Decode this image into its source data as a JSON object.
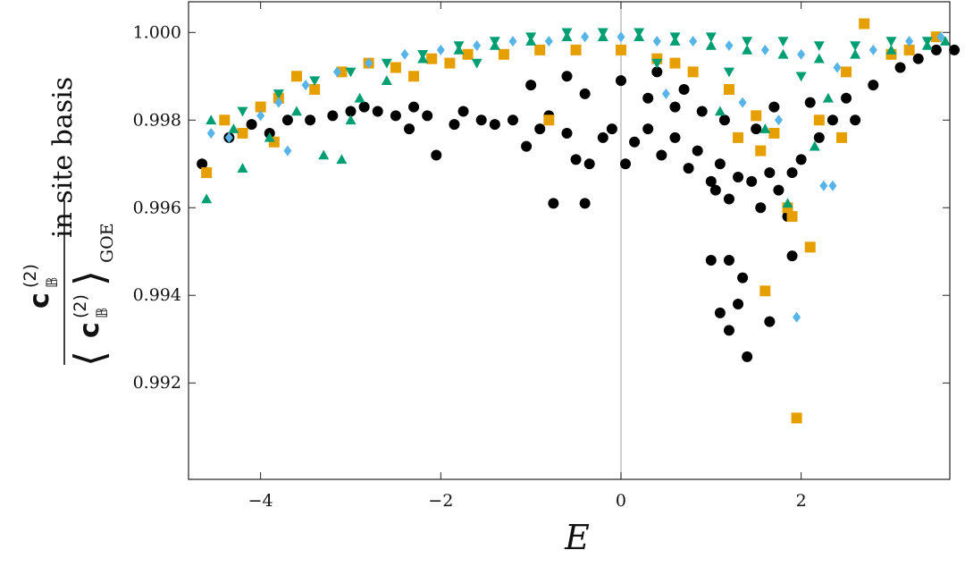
{
  "chart_data": {
    "type": "scatter",
    "title": "",
    "xlabel": "E",
    "ylabel_fraction": {
      "numerator": "c",
      "numerator_super": "(2)",
      "numerator_sub": "𝔹",
      "denominator": "c",
      "denominator_super": "(2)",
      "denominator_sub": "𝔹",
      "denominator_bracket_sub": "GOE"
    },
    "ylabel_suffix": "in site basis",
    "xlim": [
      -4.8,
      3.65
    ],
    "ylim": [
      0.9898,
      1.0007
    ],
    "x_ticks": [
      -4,
      -2,
      0,
      2
    ],
    "x_tick_labels": [
      "−4",
      "−2",
      "0",
      "2"
    ],
    "y_ticks": [
      0.992,
      0.994,
      0.996,
      0.998,
      1.0
    ],
    "y_tick_labels": [
      "0.992",
      "0.994",
      "0.996",
      "0.998",
      "1.000"
    ],
    "zero_line_x": 0,
    "grid": false,
    "legend": "none",
    "series": [
      {
        "marker": "circle",
        "color": "#000000",
        "points": [
          [
            -4.65,
            0.997
          ],
          [
            -4.35,
            0.9976
          ],
          [
            -4.1,
            0.9979
          ],
          [
            -3.9,
            0.9977
          ],
          [
            -3.7,
            0.998
          ],
          [
            -3.45,
            0.998
          ],
          [
            -3.2,
            0.9981
          ],
          [
            -3.0,
            0.9982
          ],
          [
            -2.85,
            0.9983
          ],
          [
            -2.7,
            0.9982
          ],
          [
            -2.5,
            0.9981
          ],
          [
            -2.35,
            0.9978
          ],
          [
            -2.3,
            0.9983
          ],
          [
            -2.15,
            0.9981
          ],
          [
            -2.05,
            0.9972
          ],
          [
            -1.85,
            0.9979
          ],
          [
            -1.75,
            0.9982
          ],
          [
            -1.55,
            0.998
          ],
          [
            -1.4,
            0.9979
          ],
          [
            -1.2,
            0.998
          ],
          [
            -1.05,
            0.9974
          ],
          [
            -0.9,
            0.9978
          ],
          [
            -0.8,
            0.9981
          ],
          [
            -0.6,
            0.9977
          ],
          [
            -0.5,
            0.9971
          ],
          [
            -0.35,
            0.997
          ],
          [
            -0.2,
            0.9976
          ],
          [
            -0.1,
            0.9978
          ],
          [
            0.05,
            0.997
          ],
          [
            0.15,
            0.9975
          ],
          [
            0.3,
            0.9978
          ],
          [
            0.45,
            0.9972
          ],
          [
            0.6,
            0.9976
          ],
          [
            0.75,
            0.9969
          ],
          [
            0.85,
            0.9973
          ],
          [
            1.0,
            0.9966
          ],
          [
            1.05,
            0.9964
          ],
          [
            1.1,
            0.997
          ],
          [
            1.2,
            0.9962
          ],
          [
            1.3,
            0.9967
          ],
          [
            1.45,
            0.9966
          ],
          [
            1.55,
            0.996
          ],
          [
            1.65,
            0.9968
          ],
          [
            1.75,
            0.9964
          ],
          [
            1.85,
            0.9958
          ],
          [
            1.9,
            0.9968
          ],
          [
            2.0,
            0.9971
          ],
          [
            2.2,
            0.9976
          ],
          [
            -0.75,
            0.9961
          ],
          [
            -0.4,
            0.9961
          ],
          [
            1.0,
            0.9948
          ],
          [
            1.2,
            0.9948
          ],
          [
            1.35,
            0.9944
          ],
          [
            1.1,
            0.9936
          ],
          [
            1.3,
            0.9938
          ],
          [
            1.2,
            0.9932
          ],
          [
            1.4,
            0.9926
          ],
          [
            1.65,
            0.9934
          ],
          [
            1.9,
            0.9949
          ],
          [
            0.3,
            0.9985
          ],
          [
            0.6,
            0.9983
          ],
          [
            -0.4,
            0.9986
          ],
          [
            0.9,
            0.9982
          ],
          [
            1.15,
            0.998
          ],
          [
            1.5,
            0.9978
          ],
          [
            2.5,
            0.9985
          ],
          [
            2.8,
            0.9988
          ],
          [
            3.1,
            0.9992
          ],
          [
            3.3,
            0.9994
          ],
          [
            3.5,
            0.9996
          ],
          [
            3.7,
            0.9996
          ],
          [
            2.6,
            0.998
          ],
          [
            -1.0,
            0.9988
          ],
          [
            0.0,
            0.9989
          ],
          [
            0.4,
            0.9991
          ],
          [
            -0.6,
            0.999
          ],
          [
            0.7,
            0.9987
          ],
          [
            1.7,
            0.9983
          ],
          [
            2.1,
            0.9984
          ],
          [
            2.35,
            0.998
          ]
        ]
      },
      {
        "marker": "square",
        "color": "#E69F00",
        "points": [
          [
            -4.6,
            0.9968
          ],
          [
            -4.4,
            0.998
          ],
          [
            -4.2,
            0.9977
          ],
          [
            -4.0,
            0.9983
          ],
          [
            -3.8,
            0.9985
          ],
          [
            -3.6,
            0.999
          ],
          [
            -3.4,
            0.9987
          ],
          [
            -3.1,
            0.9991
          ],
          [
            -2.8,
            0.9993
          ],
          [
            -2.5,
            0.9992
          ],
          [
            -2.1,
            0.9994
          ],
          [
            -1.7,
            0.9995
          ],
          [
            -1.3,
            0.9995
          ],
          [
            -0.9,
            0.9996
          ],
          [
            -0.5,
            0.9996
          ],
          [
            0.0,
            0.9996
          ],
          [
            0.4,
            0.9994
          ],
          [
            0.8,
            0.9991
          ],
          [
            1.2,
            0.9987
          ],
          [
            1.5,
            0.9981
          ],
          [
            1.7,
            0.9977
          ],
          [
            1.85,
            0.996
          ],
          [
            1.9,
            0.9958
          ],
          [
            2.1,
            0.9951
          ],
          [
            1.6,
            0.9941
          ],
          [
            1.95,
            0.9912
          ],
          [
            2.2,
            0.998
          ],
          [
            2.5,
            0.9991
          ],
          [
            2.7,
            1.0002
          ],
          [
            3.0,
            0.9995
          ],
          [
            3.2,
            0.9996
          ],
          [
            3.5,
            0.9999
          ],
          [
            -3.85,
            0.9975
          ],
          [
            -2.3,
            0.999
          ],
          [
            -0.8,
            0.998
          ],
          [
            1.3,
            0.9976
          ],
          [
            1.55,
            0.9973
          ],
          [
            2.45,
            0.9976
          ],
          [
            -1.9,
            0.9993
          ],
          [
            0.6,
            0.9993
          ]
        ]
      },
      {
        "marker": "triangle-up",
        "color": "#009E73",
        "points": [
          [
            -4.6,
            0.9962
          ],
          [
            -4.2,
            0.9969
          ],
          [
            -4.55,
            0.998
          ],
          [
            -4.3,
            0.9978
          ],
          [
            -3.9,
            0.9976
          ],
          [
            -3.6,
            0.9982
          ],
          [
            -3.3,
            0.9972
          ],
          [
            -3.1,
            0.9971
          ],
          [
            -2.9,
            0.9985
          ],
          [
            -2.6,
            0.9989
          ],
          [
            -2.2,
            0.9994
          ],
          [
            -1.8,
            0.9996
          ],
          [
            -1.4,
            0.9997
          ],
          [
            -1.0,
            0.9998
          ],
          [
            -0.6,
            0.9999
          ],
          [
            -0.2,
            0.9999
          ],
          [
            0.2,
            0.9999
          ],
          [
            0.6,
            0.9998
          ],
          [
            1.0,
            0.9997
          ],
          [
            1.4,
            0.9996
          ],
          [
            1.8,
            0.9995
          ],
          [
            2.2,
            0.9994
          ],
          [
            2.6,
            0.9995
          ],
          [
            3.0,
            0.9996
          ],
          [
            3.4,
            0.9997
          ],
          [
            3.6,
            0.9998
          ],
          [
            1.85,
            0.9961
          ],
          [
            2.15,
            0.9974
          ],
          [
            1.1,
            0.9982
          ],
          [
            1.6,
            0.9978
          ],
          [
            2.3,
            0.9985
          ],
          [
            -3.0,
            0.998
          ]
        ]
      },
      {
        "marker": "triangle-down",
        "color": "#009E73",
        "points": [
          [
            -4.2,
            0.9982
          ],
          [
            -3.8,
            0.9986
          ],
          [
            -3.4,
            0.9989
          ],
          [
            -3.0,
            0.9991
          ],
          [
            -2.6,
            0.9993
          ],
          [
            -2.2,
            0.9995
          ],
          [
            -1.8,
            0.9997
          ],
          [
            -1.4,
            0.9998
          ],
          [
            -1.0,
            0.9999
          ],
          [
            -0.6,
            1.0
          ],
          [
            -0.2,
            1.0
          ],
          [
            0.2,
            1.0
          ],
          [
            0.6,
            0.9999
          ],
          [
            1.0,
            0.9999
          ],
          [
            1.4,
            0.9998
          ],
          [
            1.8,
            0.9998
          ],
          [
            2.2,
            0.9997
          ],
          [
            2.6,
            0.9997
          ],
          [
            3.0,
            0.9998
          ],
          [
            3.4,
            0.9998
          ],
          [
            0.4,
            0.9993
          ],
          [
            1.2,
            0.9991
          ],
          [
            2.0,
            0.999
          ],
          [
            -1.6,
            0.9993
          ]
        ]
      },
      {
        "marker": "diamond",
        "color": "#56B4E9",
        "points": [
          [
            -4.55,
            0.9977
          ],
          [
            -4.35,
            0.9976
          ],
          [
            -4.0,
            0.9981
          ],
          [
            -3.8,
            0.9984
          ],
          [
            -3.5,
            0.9988
          ],
          [
            -3.15,
            0.9991
          ],
          [
            -2.8,
            0.9993
          ],
          [
            -2.4,
            0.9995
          ],
          [
            -2.0,
            0.9996
          ],
          [
            -1.6,
            0.9997
          ],
          [
            -1.2,
            0.9998
          ],
          [
            -0.8,
            0.9998
          ],
          [
            -0.4,
            0.9999
          ],
          [
            0.0,
            0.9999
          ],
          [
            0.4,
            0.9998
          ],
          [
            0.8,
            0.9998
          ],
          [
            1.2,
            0.9997
          ],
          [
            1.6,
            0.9996
          ],
          [
            2.0,
            0.9995
          ],
          [
            2.25,
            0.9965
          ],
          [
            2.35,
            0.9965
          ],
          [
            1.95,
            0.9935
          ],
          [
            2.4,
            0.9992
          ],
          [
            2.8,
            0.9996
          ],
          [
            3.2,
            0.9998
          ],
          [
            3.55,
            0.9999
          ],
          [
            1.35,
            0.9984
          ],
          [
            1.75,
            0.998
          ],
          [
            0.5,
            0.9986
          ],
          [
            -3.7,
            0.9973
          ]
        ]
      }
    ]
  }
}
